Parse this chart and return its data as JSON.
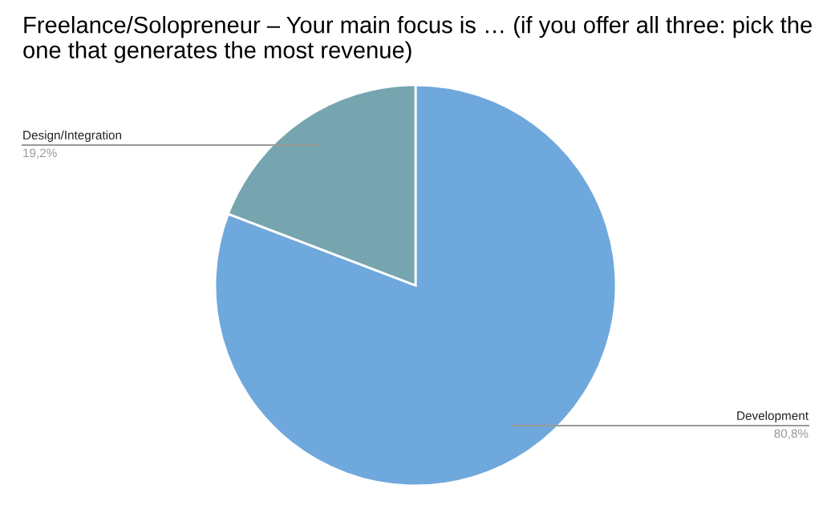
{
  "chart_data": {
    "type": "pie",
    "title": "Freelance/Solopreneur – Your main focus is … (if you offer all three: pick the one that generates the most revenue)",
    "categories": [
      "Development",
      "Design/Integration"
    ],
    "values": [
      80.8,
      19.2
    ],
    "colors": [
      "#6fa8dc",
      "#76a5af"
    ],
    "value_labels": [
      "80,8%",
      "19,2%"
    ],
    "legend": false
  }
}
